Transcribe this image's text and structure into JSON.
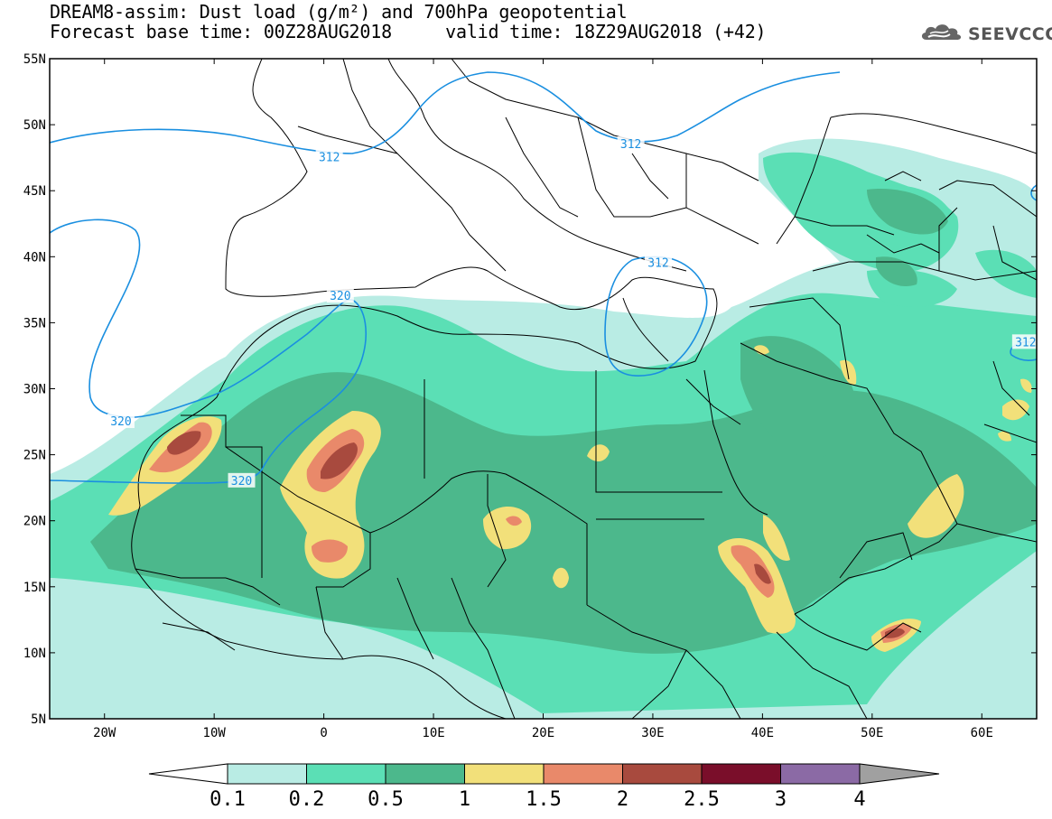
{
  "title": {
    "line1": "DREAM8-assim: Dust load (g/m²) and 700hPa geopotential",
    "line2_left": "Forecast base time: 00Z28AUG2018",
    "line2_right": "valid time: 18Z29AUG2018 (+42)"
  },
  "logo": {
    "text": "SEEVCCC",
    "icon": "cloud-icon"
  },
  "axes": {
    "lat_ticks": [
      {
        "value": 55,
        "label": "55N"
      },
      {
        "value": 50,
        "label": "50N"
      },
      {
        "value": 45,
        "label": "45N"
      },
      {
        "value": 40,
        "label": "40N"
      },
      {
        "value": 35,
        "label": "35N"
      },
      {
        "value": 30,
        "label": "30N"
      },
      {
        "value": 25,
        "label": "25N"
      },
      {
        "value": 20,
        "label": "20N"
      },
      {
        "value": 15,
        "label": "15N"
      },
      {
        "value": 10,
        "label": "10N"
      },
      {
        "value": 5,
        "label": "5N"
      }
    ],
    "lon_ticks": [
      {
        "value": -20,
        "label": "20W"
      },
      {
        "value": -10,
        "label": "10W"
      },
      {
        "value": 0,
        "label": "0"
      },
      {
        "value": 10,
        "label": "10E"
      },
      {
        "value": 20,
        "label": "20E"
      },
      {
        "value": 30,
        "label": "30E"
      },
      {
        "value": 40,
        "label": "40E"
      },
      {
        "value": 50,
        "label": "50E"
      },
      {
        "value": 60,
        "label": "60E"
      }
    ],
    "lon_range": [
      -25,
      65
    ],
    "lat_range": [
      5,
      55
    ]
  },
  "contours": [
    {
      "label": "312",
      "lon": 0.5,
      "lat": 47.5
    },
    {
      "label": "312",
      "lon": 28,
      "lat": 48.5
    },
    {
      "label": "312",
      "lon": 30.5,
      "lat": 39.5
    },
    {
      "label": "320",
      "lon": 1.5,
      "lat": 37
    },
    {
      "label": "320",
      "lon": -18.5,
      "lat": 27.5
    },
    {
      "label": "320",
      "lon": -7.5,
      "lat": 23
    },
    {
      "label": "312",
      "lon": 64,
      "lat": 33.5
    }
  ],
  "colorbar": {
    "levels": [
      "0.1",
      "0.2",
      "0.5",
      "1",
      "1.5",
      "2",
      "2.5",
      "3",
      "4"
    ],
    "colors": [
      "#b9ece4",
      "#5bdfb5",
      "#4cb88c",
      "#f2e07a",
      "#e9896a",
      "#a84a3e",
      "#7a0e2a",
      "#8b6aa5"
    ],
    "left_arrow_color": "#ffffff",
    "right_arrow_color": "#a0a0a0"
  },
  "colors": {
    "contour": "#1a8fe0",
    "sea": "#ffffff",
    "border": "#000000"
  }
}
